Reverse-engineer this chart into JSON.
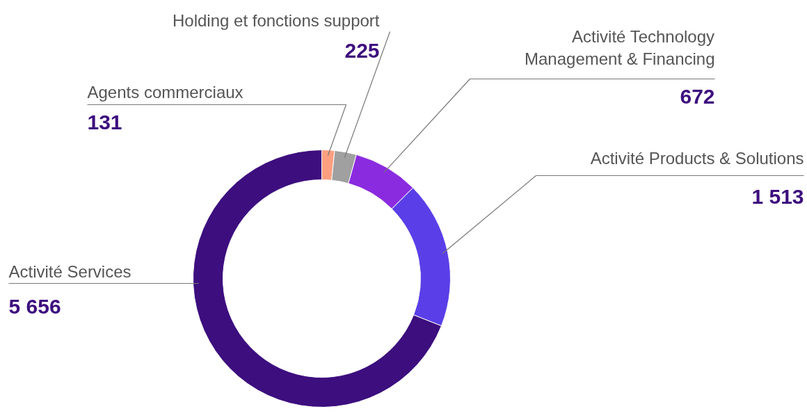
{
  "chart_data": {
    "type": "donut",
    "categories": [
      "Agents commerciaux",
      "Holding et fonctions support",
      "Activité Technology\nManagement & Financing",
      "Activité Products & Solutions",
      "Activité Services"
    ],
    "values": [
      131,
      225,
      672,
      1513,
      5656
    ],
    "value_labels": [
      "131",
      "225",
      "672",
      "1 513",
      "5 656"
    ],
    "colors": [
      "#ff9f80",
      "#a0a0a0",
      "#8a2be0",
      "#5a3fe8",
      "#3d0e7e"
    ]
  }
}
